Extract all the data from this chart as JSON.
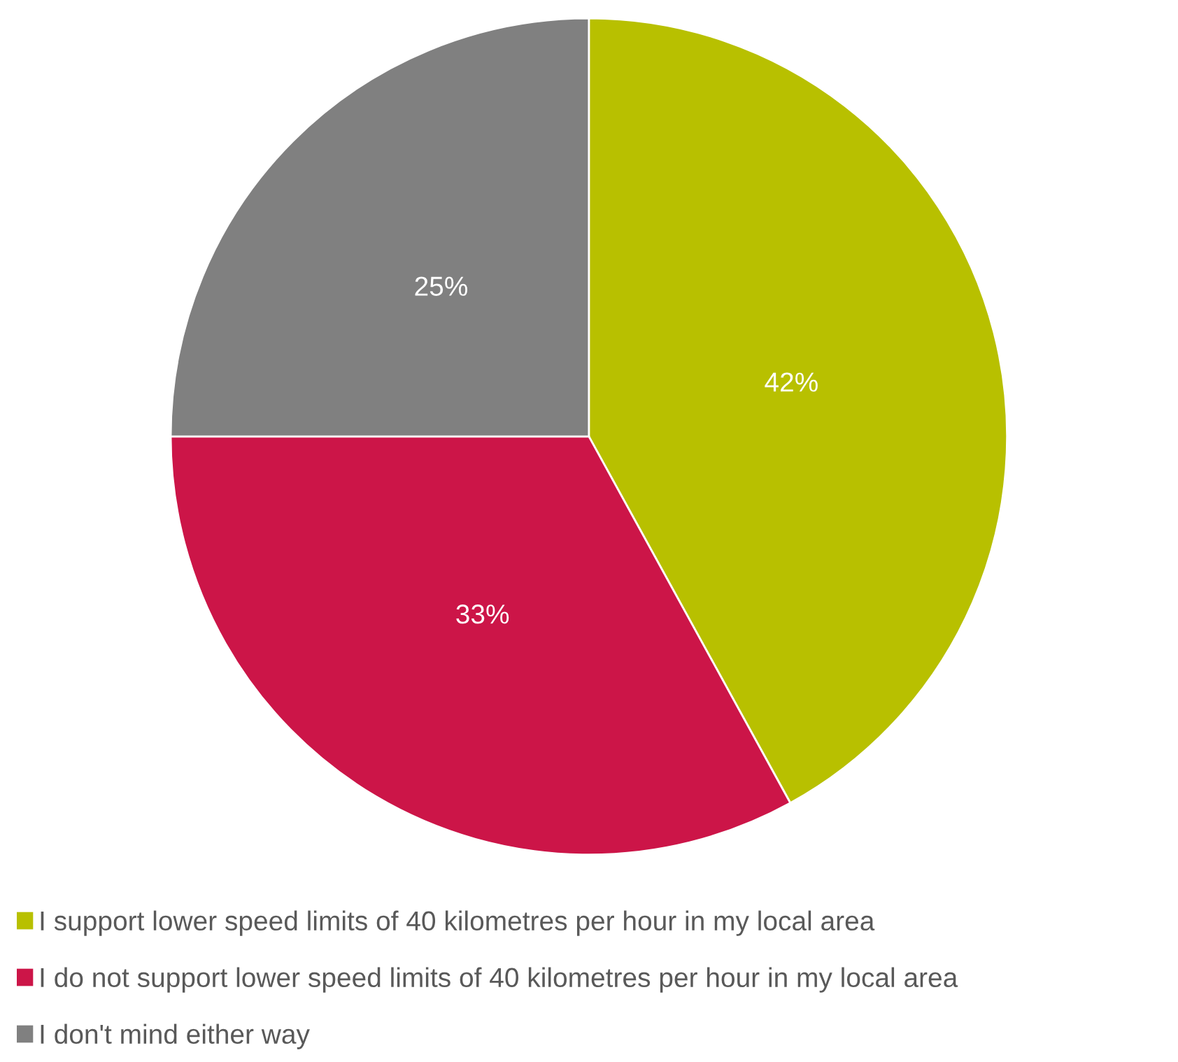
{
  "chart_data": {
    "type": "pie",
    "categories": [
      "I support lower speed limits of 40 kilometres per hour in my local area",
      "I do not support lower speed limits of 40 kilometres per hour in my local area",
      "I don't mind either way"
    ],
    "values": [
      42,
      33,
      25
    ],
    "value_labels": [
      "42%",
      "33%",
      "25%"
    ],
    "colors": [
      "#b8c000",
      "#cc1548",
      "#808080"
    ],
    "legend": "bottom"
  }
}
